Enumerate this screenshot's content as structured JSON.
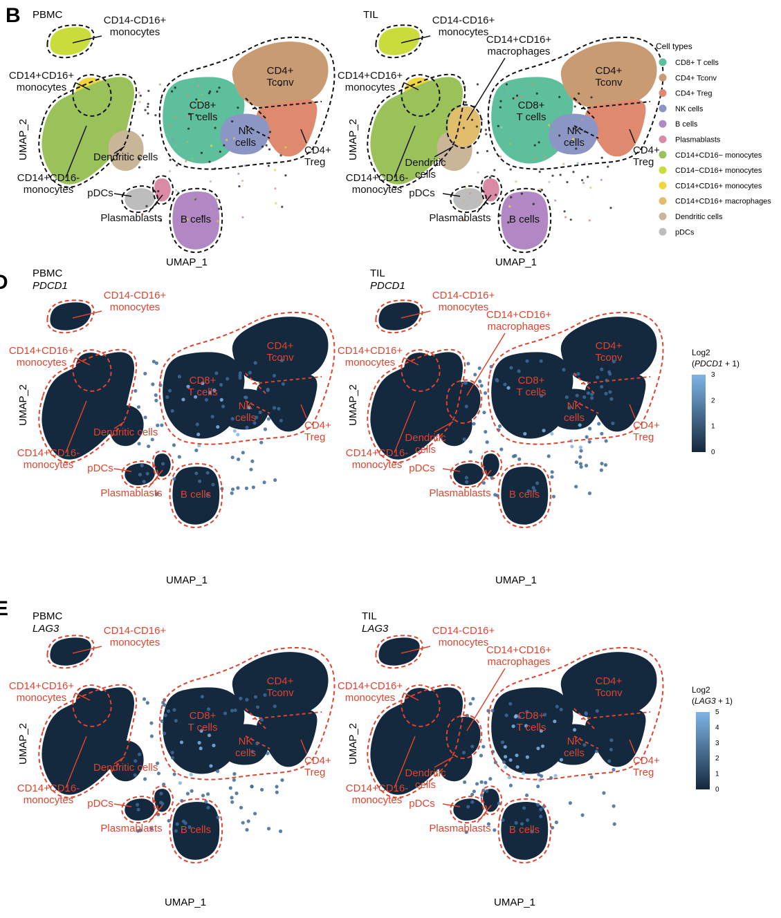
{
  "panels": {
    "B": {
      "letter": "B",
      "left_title": "PBMC",
      "right_title": "TIL",
      "gene": ""
    },
    "D": {
      "letter": "D",
      "left_title": "PBMC",
      "right_title": "TIL",
      "gene": "PDCD1"
    },
    "E": {
      "letter": "E",
      "left_title": "PBMC",
      "right_title": "TIL",
      "gene": "LAG3"
    }
  },
  "axes": {
    "x": "UMAP_1",
    "y": "UMAP_2"
  },
  "labels": {
    "cd14n_cd16p_mono": [
      "CD14-CD16+",
      "monocytes"
    ],
    "cd14p_cd16p_mono": [
      "CD14+CD16+",
      "monocytes"
    ],
    "cd14p_cd16n_mono": [
      "CD14+CD16-",
      "monocytes"
    ],
    "cd14p_cd16p_macro": [
      "CD14+CD16+",
      "macrophages"
    ],
    "cd4_tconv": [
      "CD4+",
      "Tconv"
    ],
    "cd8": [
      "CD8+",
      "T cells"
    ],
    "nk": [
      "NK",
      "cells"
    ],
    "treg": [
      "CD4+",
      "Treg"
    ],
    "dendritic": "Dendritic cells",
    "dendritic_til": [
      "Dendritic",
      "cells"
    ],
    "pdcs": "pDCs",
    "plasmablasts": "Plasmablasts",
    "bcells": "B cells"
  },
  "legend": {
    "title": "Cell types",
    "items": [
      {
        "label": "CD8+ T cells",
        "color": "#5dbf9c"
      },
      {
        "label": "CD4+ Tconv",
        "color": "#c89b72"
      },
      {
        "label": "CD4+ Treg",
        "color": "#df8a6e"
      },
      {
        "label": "NK cells",
        "color": "#8c96c4"
      },
      {
        "label": "B cells",
        "color": "#b187c4"
      },
      {
        "label": "Plasmablasts",
        "color": "#d98aa4"
      },
      {
        "label": "CD14+CD16− monocytes",
        "color": "#9bc25a"
      },
      {
        "label": "CD14−CD16+ monocytes",
        "color": "#c9dc3c"
      },
      {
        "label": "CD14+CD16+ monocytes",
        "color": "#f0d53c"
      },
      {
        "label": "CD14+CD16+ macrophages",
        "color": "#e2bd6c"
      },
      {
        "label": "Dendritic cells",
        "color": "#c9b598"
      },
      {
        "label": "pDCs",
        "color": "#bdbdbd"
      }
    ]
  },
  "colorbars": [
    {
      "title_pre": "Log2",
      "title_gene": "PDCD1",
      "title_post": " + 1)",
      "ticks": [
        "0",
        "1",
        "2",
        "3"
      ],
      "max": 3
    },
    {
      "title_pre": "Log2",
      "title_gene": "LAG3",
      "title_post": " + 1)",
      "ticks": [
        "0",
        "1",
        "2",
        "3",
        "4",
        "5"
      ],
      "max": 5
    }
  ],
  "colors": {
    "dark": "#14283e",
    "bright": "#7fb5e6",
    "outline_black": "#111111",
    "outline_red": "#e0442d"
  }
}
